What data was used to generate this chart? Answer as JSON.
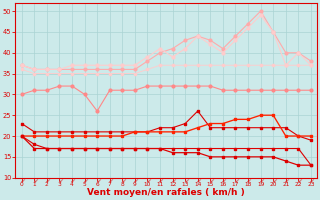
{
  "x": [
    0,
    1,
    2,
    3,
    4,
    5,
    6,
    7,
    8,
    9,
    10,
    11,
    12,
    13,
    14,
    15,
    16,
    17,
    18,
    19,
    20,
    21,
    22,
    23
  ],
  "line_rafales_top": [
    37,
    36,
    36,
    36,
    36,
    36,
    36,
    36,
    36,
    36,
    38,
    40,
    41,
    43,
    44,
    43,
    41,
    44,
    47,
    50,
    45,
    40,
    40,
    38
  ],
  "line_rafales_mid": [
    37,
    36,
    36,
    36,
    37,
    37,
    37,
    37,
    37,
    37,
    39,
    41,
    39,
    41,
    44,
    42,
    40,
    43,
    46,
    49,
    45,
    37,
    40,
    37
  ],
  "line_upper_band": [
    36,
    35,
    35,
    35,
    35,
    35,
    35,
    35,
    35,
    35,
    36,
    37,
    37,
    37,
    37,
    37,
    37,
    37,
    37,
    37,
    37,
    37,
    37,
    37
  ],
  "line_pink_var": [
    30,
    31,
    31,
    32,
    32,
    30,
    26,
    31,
    31,
    31,
    32,
    32,
    32,
    32,
    32,
    32,
    31,
    31,
    31,
    31,
    31,
    31,
    31,
    31
  ],
  "line_mean_upper": [
    23,
    21,
    21,
    21,
    21,
    21,
    21,
    21,
    21,
    21,
    21,
    22,
    22,
    23,
    26,
    22,
    22,
    22,
    22,
    22,
    22,
    22,
    20,
    19
  ],
  "line_mean": [
    20,
    20,
    20,
    20,
    20,
    20,
    20,
    20,
    20,
    21,
    21,
    21,
    21,
    21,
    22,
    23,
    23,
    24,
    24,
    25,
    25,
    20,
    20,
    20
  ],
  "line_lower": [
    20,
    18,
    17,
    17,
    17,
    17,
    17,
    17,
    17,
    17,
    17,
    17,
    17,
    17,
    17,
    17,
    17,
    17,
    17,
    17,
    17,
    17,
    17,
    13
  ],
  "line_min": [
    20,
    17,
    17,
    17,
    17,
    17,
    17,
    17,
    17,
    17,
    17,
    17,
    16,
    16,
    16,
    15,
    15,
    15,
    15,
    15,
    15,
    14,
    13,
    13
  ],
  "bg": "#cceaea",
  "grid_color": "#aad4d4",
  "c_light": "#ffaaaa",
  "c_light2": "#ffbbbb",
  "c_mid": "#ff8888",
  "c_dark": "#dd0000",
  "c_red": "#ff2200",
  "xlabel": "Vent moyen/en rafales ( km/h )",
  "ylim": [
    10,
    52
  ],
  "yticks": [
    10,
    15,
    20,
    25,
    30,
    35,
    40,
    45,
    50
  ]
}
